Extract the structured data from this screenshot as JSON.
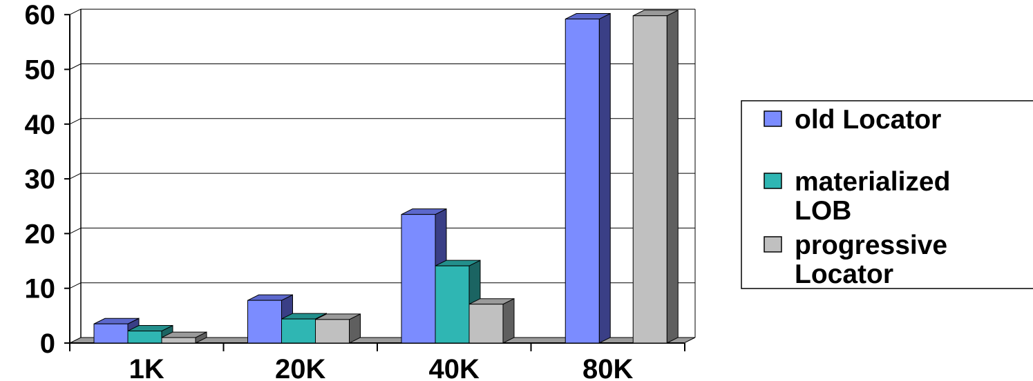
{
  "chart_data": {
    "type": "bar",
    "three_d": true,
    "categories": [
      "1K",
      "20K",
      "40K",
      "80K"
    ],
    "series": [
      {
        "name": "old Locator",
        "values": [
          3.5,
          7.8,
          23.5,
          59.2
        ],
        "color": "#7b8cff",
        "side_color": "#3a3f86",
        "top_color": "#5c68cc"
      },
      {
        "name": "materialized LOB",
        "values": [
          2.2,
          4.4,
          14.1,
          0
        ],
        "color": "#2fb6b3",
        "side_color": "#1b6462",
        "top_color": "#238f8c"
      },
      {
        "name": "progressive Locator",
        "values": [
          1.0,
          4.3,
          7.1,
          59.8
        ],
        "color": "#c0c0c0",
        "side_color": "#5f5f5f",
        "top_color": "#9a9a9a"
      }
    ],
    "y_ticks": [
      "0",
      "10",
      "20",
      "30",
      "40",
      "50",
      "60"
    ],
    "ylim": [
      0,
      60
    ],
    "grid": true,
    "legend_position": "right",
    "legend_lines": [
      [
        "old Locator"
      ],
      [
        "materialized",
        "LOB"
      ],
      [
        "progressive",
        "Locator"
      ]
    ]
  }
}
